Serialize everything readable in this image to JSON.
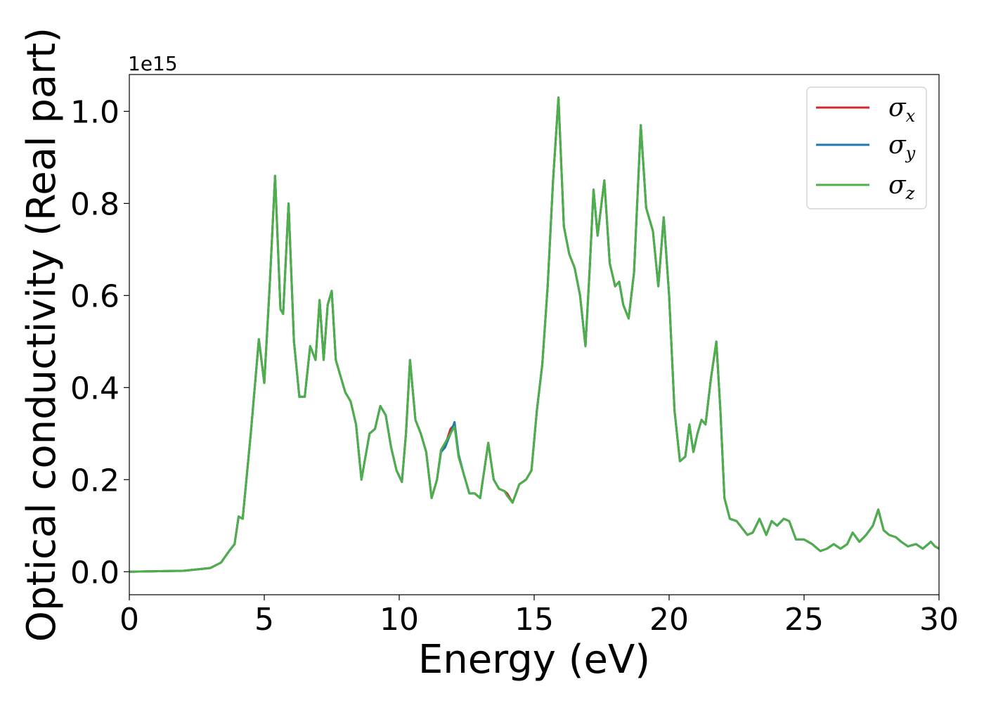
{
  "chart_data": {
    "type": "line",
    "xlabel": "Energy (eV)",
    "ylabel": "Optical conductivity (Real part)",
    "y_offset_label": "1e15",
    "xlim": [
      0,
      30
    ],
    "ylim": [
      -0.05,
      1.08
    ],
    "x_ticks": [
      0,
      5,
      10,
      15,
      20,
      25,
      30
    ],
    "x_tick_labels": [
      "0",
      "5",
      "10",
      "15",
      "20",
      "25",
      "30"
    ],
    "y_ticks": [
      0.0,
      0.2,
      0.4,
      0.6,
      0.8,
      1.0
    ],
    "y_tick_labels": [
      "0.0",
      "0.2",
      "0.4",
      "0.6",
      "0.8",
      "1.0"
    ],
    "y_unit_multiplier": 1000000000000000.0,
    "grid": false,
    "legend_position": "top-right",
    "series": [
      {
        "name": "σx",
        "legend_symbol": "σ",
        "legend_subscript": "x",
        "color": "#d62728",
        "x": [
          0,
          2,
          3,
          3.4,
          3.7,
          3.9,
          4.05,
          4.2,
          4.5,
          4.8,
          5.0,
          5.2,
          5.4,
          5.6,
          5.7,
          5.9,
          6.1,
          6.3,
          6.5,
          6.7,
          6.9,
          7.05,
          7.2,
          7.35,
          7.5,
          7.65,
          7.8,
          8.0,
          8.2,
          8.4,
          8.6,
          8.75,
          8.9,
          9.1,
          9.3,
          9.5,
          9.7,
          9.9,
          10.1,
          10.25,
          10.4,
          10.6,
          10.8,
          11.0,
          11.2,
          11.4,
          11.55,
          11.7,
          11.9,
          12.05,
          12.2,
          12.4,
          12.6,
          12.8,
          13.0,
          13.15,
          13.3,
          13.5,
          13.7,
          13.9,
          14.0,
          14.2,
          14.45,
          14.7,
          14.9,
          15.1,
          15.3,
          15.5,
          15.7,
          15.9,
          16.1,
          16.3,
          16.5,
          16.7,
          16.9,
          17.05,
          17.2,
          17.35,
          17.6,
          17.8,
          18.0,
          18.15,
          18.3,
          18.5,
          18.7,
          18.95,
          19.15,
          19.4,
          19.6,
          19.8,
          20.0,
          20.2,
          20.4,
          20.6,
          20.75,
          20.9,
          21.05,
          21.2,
          21.35,
          21.55,
          21.75,
          21.9,
          22.05,
          22.25,
          22.5,
          22.7,
          22.9,
          23.1,
          23.35,
          23.6,
          23.8,
          24.0,
          24.25,
          24.45,
          24.7,
          25.0,
          25.3,
          25.6,
          25.85,
          26.1,
          26.35,
          26.6,
          26.8,
          27.05,
          27.3,
          27.55,
          27.75,
          27.95,
          28.15,
          28.4,
          28.6,
          28.85,
          29.15,
          29.4,
          29.7,
          29.85,
          30
        ],
        "y": [
          0.0,
          0.002,
          0.008,
          0.02,
          0.045,
          0.06,
          0.12,
          0.115,
          0.3,
          0.505,
          0.41,
          0.62,
          0.86,
          0.57,
          0.56,
          0.8,
          0.5,
          0.38,
          0.38,
          0.49,
          0.46,
          0.59,
          0.46,
          0.58,
          0.61,
          0.46,
          0.43,
          0.39,
          0.37,
          0.32,
          0.2,
          0.25,
          0.3,
          0.31,
          0.36,
          0.34,
          0.27,
          0.22,
          0.195,
          0.3,
          0.46,
          0.33,
          0.3,
          0.26,
          0.16,
          0.2,
          0.265,
          0.275,
          0.31,
          0.32,
          0.25,
          0.21,
          0.17,
          0.17,
          0.16,
          0.22,
          0.28,
          0.2,
          0.18,
          0.175,
          0.17,
          0.15,
          0.19,
          0.2,
          0.22,
          0.35,
          0.45,
          0.62,
          0.85,
          1.03,
          0.75,
          0.69,
          0.66,
          0.6,
          0.49,
          0.65,
          0.83,
          0.73,
          0.85,
          0.67,
          0.62,
          0.63,
          0.58,
          0.55,
          0.65,
          0.97,
          0.79,
          0.74,
          0.62,
          0.77,
          0.6,
          0.35,
          0.24,
          0.25,
          0.32,
          0.26,
          0.3,
          0.33,
          0.32,
          0.42,
          0.5,
          0.35,
          0.16,
          0.115,
          0.11,
          0.095,
          0.08,
          0.085,
          0.115,
          0.08,
          0.11,
          0.1,
          0.115,
          0.11,
          0.07,
          0.07,
          0.06,
          0.045,
          0.05,
          0.06,
          0.05,
          0.06,
          0.085,
          0.065,
          0.08,
          0.1,
          0.135,
          0.09,
          0.08,
          0.075,
          0.065,
          0.055,
          0.06,
          0.05,
          0.065,
          0.055,
          0.05
        ]
      },
      {
        "name": "σy",
        "legend_symbol": "σ",
        "legend_subscript": "y",
        "color": "#1f77b4",
        "x": [
          0,
          2,
          3,
          3.4,
          3.7,
          3.9,
          4.05,
          4.2,
          4.5,
          4.8,
          5.0,
          5.2,
          5.4,
          5.6,
          5.7,
          5.9,
          6.1,
          6.3,
          6.5,
          6.7,
          6.9,
          7.05,
          7.2,
          7.35,
          7.5,
          7.65,
          7.8,
          8.0,
          8.2,
          8.4,
          8.6,
          8.75,
          8.9,
          9.1,
          9.3,
          9.5,
          9.7,
          9.9,
          10.1,
          10.25,
          10.4,
          10.6,
          10.8,
          11.0,
          11.2,
          11.4,
          11.55,
          11.7,
          11.9,
          12.05,
          12.2,
          12.4,
          12.6,
          12.8,
          13.0,
          13.15,
          13.3,
          13.5,
          13.7,
          13.9,
          14.0,
          14.2,
          14.45,
          14.7,
          14.9,
          15.1,
          15.3,
          15.5,
          15.7,
          15.9,
          16.1,
          16.3,
          16.5,
          16.7,
          16.9,
          17.05,
          17.2,
          17.35,
          17.6,
          17.8,
          18.0,
          18.15,
          18.3,
          18.5,
          18.7,
          18.95,
          19.15,
          19.4,
          19.6,
          19.8,
          20.0,
          20.2,
          20.4,
          20.6,
          20.75,
          20.9,
          21.05,
          21.2,
          21.35,
          21.55,
          21.75,
          21.9,
          22.05,
          22.25,
          22.5,
          22.7,
          22.9,
          23.1,
          23.35,
          23.6,
          23.8,
          24.0,
          24.25,
          24.45,
          24.7,
          25.0,
          25.3,
          25.6,
          25.85,
          26.1,
          26.35,
          26.6,
          26.8,
          27.05,
          27.3,
          27.55,
          27.75,
          27.95,
          28.15,
          28.4,
          28.6,
          28.85,
          29.15,
          29.4,
          29.7,
          29.85,
          30
        ],
        "y": [
          0.0,
          0.002,
          0.008,
          0.02,
          0.045,
          0.06,
          0.12,
          0.115,
          0.3,
          0.505,
          0.41,
          0.62,
          0.86,
          0.57,
          0.56,
          0.8,
          0.5,
          0.38,
          0.38,
          0.49,
          0.46,
          0.59,
          0.46,
          0.58,
          0.61,
          0.46,
          0.43,
          0.39,
          0.37,
          0.32,
          0.2,
          0.25,
          0.3,
          0.31,
          0.36,
          0.34,
          0.27,
          0.22,
          0.195,
          0.3,
          0.46,
          0.33,
          0.3,
          0.26,
          0.16,
          0.2,
          0.26,
          0.27,
          0.3,
          0.325,
          0.255,
          0.21,
          0.17,
          0.17,
          0.16,
          0.22,
          0.28,
          0.2,
          0.18,
          0.175,
          0.165,
          0.15,
          0.19,
          0.2,
          0.22,
          0.35,
          0.45,
          0.62,
          0.85,
          1.03,
          0.75,
          0.69,
          0.66,
          0.6,
          0.49,
          0.65,
          0.83,
          0.73,
          0.85,
          0.67,
          0.62,
          0.63,
          0.58,
          0.55,
          0.65,
          0.97,
          0.79,
          0.74,
          0.62,
          0.77,
          0.6,
          0.35,
          0.24,
          0.25,
          0.32,
          0.26,
          0.3,
          0.33,
          0.32,
          0.42,
          0.5,
          0.35,
          0.16,
          0.115,
          0.11,
          0.095,
          0.08,
          0.085,
          0.115,
          0.08,
          0.11,
          0.1,
          0.115,
          0.11,
          0.07,
          0.07,
          0.06,
          0.045,
          0.05,
          0.06,
          0.05,
          0.06,
          0.085,
          0.065,
          0.08,
          0.1,
          0.135,
          0.09,
          0.08,
          0.075,
          0.065,
          0.055,
          0.06,
          0.05,
          0.065,
          0.055,
          0.05
        ]
      },
      {
        "name": "σz",
        "legend_symbol": "σ",
        "legend_subscript": "z",
        "color": "#4daf4a",
        "x": [
          0,
          2,
          3,
          3.4,
          3.7,
          3.9,
          4.05,
          4.2,
          4.5,
          4.8,
          5.0,
          5.2,
          5.4,
          5.6,
          5.7,
          5.9,
          6.1,
          6.3,
          6.5,
          6.7,
          6.9,
          7.05,
          7.2,
          7.35,
          7.5,
          7.65,
          7.8,
          8.0,
          8.2,
          8.4,
          8.6,
          8.75,
          8.9,
          9.1,
          9.3,
          9.5,
          9.7,
          9.9,
          10.1,
          10.25,
          10.4,
          10.6,
          10.8,
          11.0,
          11.2,
          11.4,
          11.55,
          11.7,
          11.9,
          12.05,
          12.2,
          12.4,
          12.6,
          12.8,
          13.0,
          13.15,
          13.3,
          13.5,
          13.7,
          13.9,
          14.0,
          14.2,
          14.45,
          14.7,
          14.9,
          15.1,
          15.3,
          15.5,
          15.7,
          15.9,
          16.1,
          16.3,
          16.5,
          16.7,
          16.9,
          17.05,
          17.2,
          17.35,
          17.6,
          17.8,
          18.0,
          18.15,
          18.3,
          18.5,
          18.7,
          18.95,
          19.15,
          19.4,
          19.6,
          19.8,
          20.0,
          20.2,
          20.4,
          20.6,
          20.75,
          20.9,
          21.05,
          21.2,
          21.35,
          21.55,
          21.75,
          21.9,
          22.05,
          22.25,
          22.5,
          22.7,
          22.9,
          23.1,
          23.35,
          23.6,
          23.8,
          24.0,
          24.25,
          24.45,
          24.7,
          25.0,
          25.3,
          25.6,
          25.85,
          26.1,
          26.35,
          26.6,
          26.8,
          27.05,
          27.3,
          27.55,
          27.75,
          27.95,
          28.15,
          28.4,
          28.6,
          28.85,
          29.15,
          29.4,
          29.7,
          29.85,
          30
        ],
        "y": [
          0.0,
          0.002,
          0.008,
          0.02,
          0.045,
          0.06,
          0.12,
          0.115,
          0.3,
          0.505,
          0.41,
          0.62,
          0.86,
          0.57,
          0.56,
          0.8,
          0.5,
          0.38,
          0.38,
          0.49,
          0.46,
          0.59,
          0.46,
          0.58,
          0.61,
          0.46,
          0.43,
          0.39,
          0.37,
          0.32,
          0.2,
          0.25,
          0.3,
          0.31,
          0.36,
          0.34,
          0.27,
          0.22,
          0.195,
          0.3,
          0.46,
          0.33,
          0.3,
          0.26,
          0.16,
          0.2,
          0.265,
          0.28,
          0.3,
          0.315,
          0.25,
          0.21,
          0.17,
          0.17,
          0.16,
          0.22,
          0.28,
          0.2,
          0.18,
          0.175,
          0.165,
          0.15,
          0.19,
          0.2,
          0.22,
          0.35,
          0.45,
          0.62,
          0.85,
          1.03,
          0.75,
          0.69,
          0.66,
          0.6,
          0.49,
          0.65,
          0.83,
          0.73,
          0.85,
          0.67,
          0.62,
          0.63,
          0.58,
          0.55,
          0.65,
          0.97,
          0.79,
          0.74,
          0.62,
          0.77,
          0.6,
          0.35,
          0.24,
          0.25,
          0.32,
          0.26,
          0.3,
          0.33,
          0.32,
          0.42,
          0.5,
          0.35,
          0.16,
          0.115,
          0.11,
          0.095,
          0.08,
          0.085,
          0.115,
          0.08,
          0.11,
          0.1,
          0.115,
          0.11,
          0.07,
          0.07,
          0.06,
          0.045,
          0.05,
          0.06,
          0.05,
          0.06,
          0.085,
          0.065,
          0.08,
          0.1,
          0.135,
          0.09,
          0.08,
          0.075,
          0.065,
          0.055,
          0.06,
          0.05,
          0.065,
          0.055,
          0.05
        ]
      }
    ]
  }
}
